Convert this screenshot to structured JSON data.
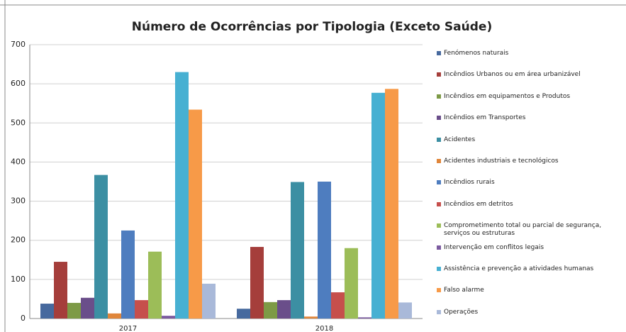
{
  "chart_data": {
    "type": "bar",
    "title": "Número de Ocorrências por Tipologia (Exceto Saúde)",
    "categories": [
      "2017",
      "2018"
    ],
    "series": [
      {
        "name": "Fenómenos naturais",
        "color": "#46699e",
        "values": [
          38,
          25
        ]
      },
      {
        "name": "Incêndios Urbanos ou em área urbanizável",
        "color": "#a53e3b",
        "values": [
          145,
          183
        ]
      },
      {
        "name": "Incêndios em equipamentos e Produtos",
        "color": "#7d9a46",
        "values": [
          40,
          42
        ]
      },
      {
        "name": "Incêndios em Transportes",
        "color": "#6a4e8a",
        "values": [
          53,
          47
        ]
      },
      {
        "name": "Acidentes",
        "color": "#3c8fa3",
        "values": [
          367,
          349
        ]
      },
      {
        "name": "Acidentes industriais e tecnológicos",
        "color": "#e0863a",
        "values": [
          13,
          5
        ]
      },
      {
        "name": "Incêndios rurais",
        "color": "#4e7dbf",
        "values": [
          225,
          350
        ]
      },
      {
        "name": "Incêndios em detritos",
        "color": "#c64f4c",
        "values": [
          47,
          67
        ]
      },
      {
        "name": "Comprometimento total ou parcial de segurança, serviços ou estruturas",
        "color": "#9cbd58",
        "values": [
          171,
          180
        ]
      },
      {
        "name": "Intervenção em conflitos legais",
        "color": "#7c5ba0",
        "values": [
          7,
          3
        ]
      },
      {
        "name": "Assistência e prevenção a atividades humanas",
        "color": "#47b0d2",
        "values": [
          630,
          577
        ]
      },
      {
        "name": "Falso alarme",
        "color": "#f79a48",
        "values": [
          534,
          587
        ]
      },
      {
        "name": "Operações",
        "color": "#a9b9d9",
        "values": [
          89,
          41
        ]
      }
    ],
    "ylim": [
      0,
      700
    ],
    "yticks": [
      0,
      100,
      200,
      300,
      400,
      500,
      600,
      700
    ],
    "grid": true
  }
}
